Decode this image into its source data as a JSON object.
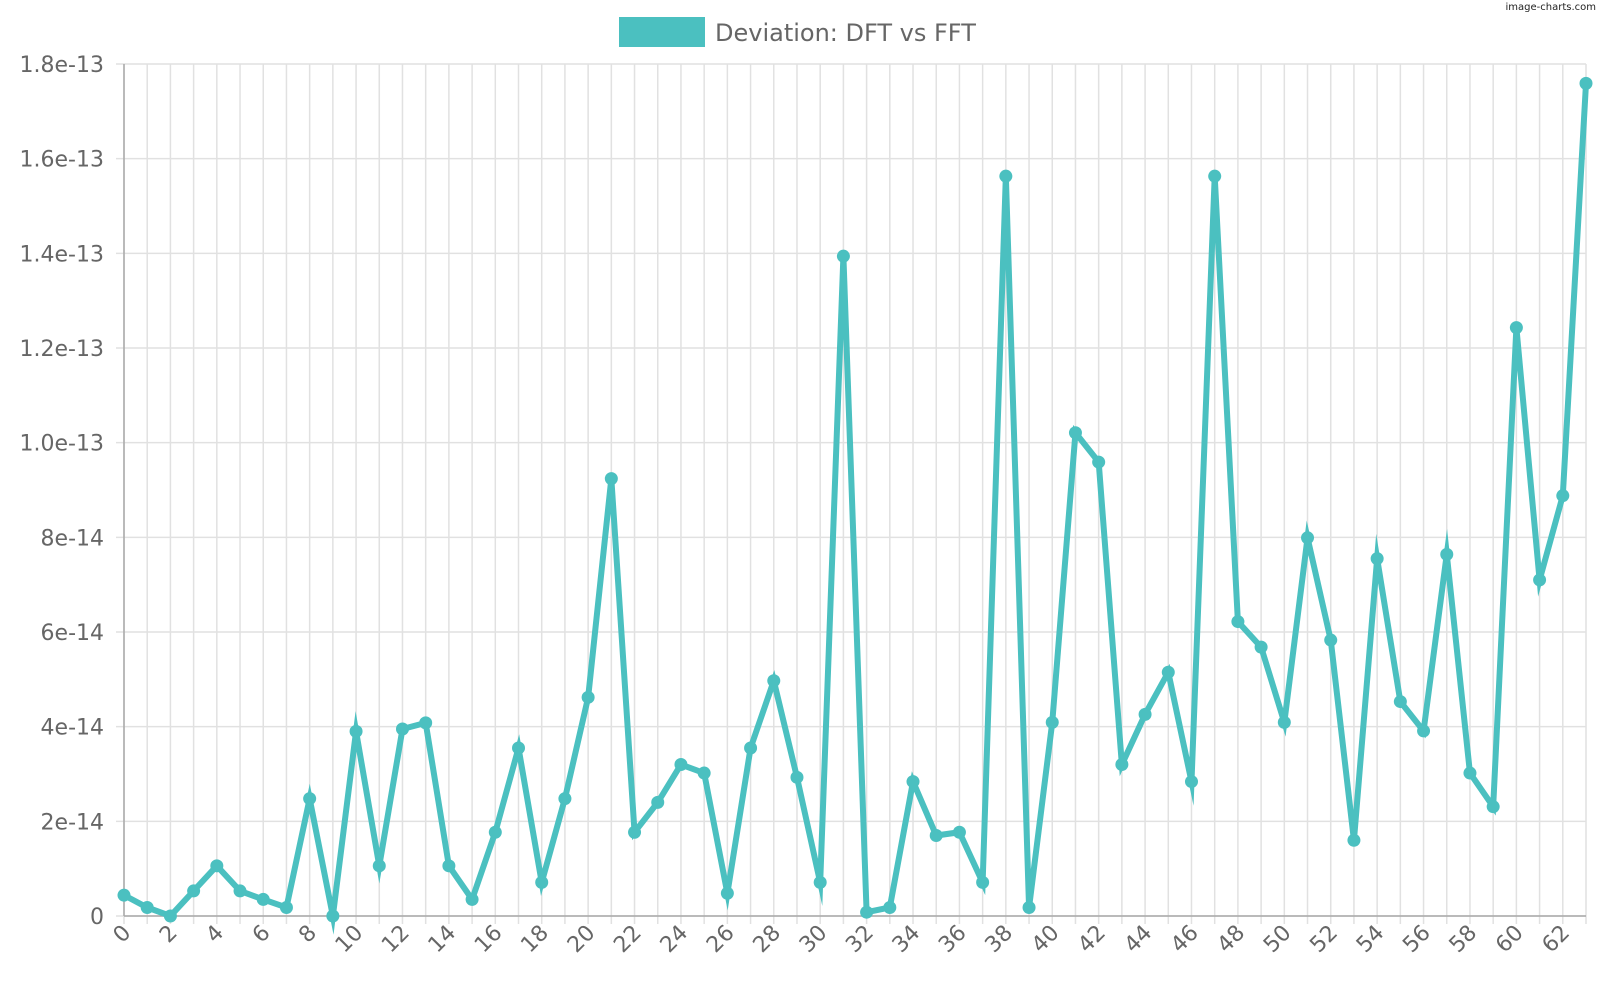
{
  "watermark": "image-charts.com",
  "colors": {
    "series": "#4bc0c0",
    "grid": "#e1e1e1",
    "axis": "#a8a8a8",
    "text": "#666666"
  },
  "chart_data": {
    "type": "line",
    "title": "",
    "xlabel": "",
    "ylabel": "",
    "grid": true,
    "legend": "top-center",
    "xlim": [
      0,
      63
    ],
    "ylim": [
      0,
      1.8e-13
    ],
    "x_ticks": [
      0,
      2,
      4,
      6,
      8,
      10,
      12,
      14,
      16,
      18,
      20,
      22,
      24,
      26,
      28,
      30,
      32,
      34,
      36,
      38,
      40,
      42,
      44,
      46,
      48,
      50,
      52,
      54,
      56,
      58,
      60,
      62
    ],
    "x_tick_labels": [
      "0",
      "2",
      "4",
      "6",
      "8",
      "10",
      "12",
      "14",
      "16",
      "18",
      "20",
      "22",
      "24",
      "26",
      "28",
      "30",
      "32",
      "34",
      "36",
      "38",
      "40",
      "42",
      "44",
      "46",
      "48",
      "50",
      "52",
      "54",
      "56",
      "58",
      "60",
      "62"
    ],
    "y_ticks": [
      0,
      2e-14,
      4e-14,
      6e-14,
      8e-14,
      1e-13,
      1.2e-13,
      1.4e-13,
      1.6e-13,
      1.8e-13
    ],
    "y_tick_labels": [
      "0",
      "2e-14",
      "4e-14",
      "6e-14",
      "8e-14",
      "1.0e-13",
      "1.2e-13",
      "1.4e-13",
      "1.6e-13",
      "1.8e-13"
    ],
    "series": [
      {
        "name": "Deviation: DFT vs FFT",
        "color": "#4bc0c0",
        "x": [
          0,
          1,
          2,
          3,
          4,
          5,
          6,
          7,
          8,
          9,
          10,
          11,
          12,
          13,
          14,
          15,
          16,
          17,
          18,
          19,
          20,
          21,
          22,
          23,
          24,
          25,
          26,
          27,
          28,
          29,
          30,
          31,
          32,
          33,
          34,
          35,
          36,
          37,
          38,
          39,
          40,
          41,
          42,
          43,
          44,
          45,
          46,
          47,
          48,
          49,
          50,
          51,
          52,
          53,
          54,
          55,
          56,
          57,
          58,
          59,
          60,
          61,
          62,
          63
        ],
        "values": [
          4.4e-15,
          1.8e-15,
          0,
          5.3e-15,
          1.06e-14,
          5.3e-15,
          3.5e-15,
          1.8e-15,
          2.48e-14,
          0,
          3.9e-14,
          1.06e-14,
          3.95e-14,
          4.08e-14,
          1.06e-14,
          3.5e-15,
          1.77e-14,
          3.55e-14,
          7.1e-15,
          2.48e-14,
          4.62e-14,
          9.24e-14,
          1.77e-14,
          2.4e-14,
          3.2e-14,
          3.02e-14,
          4.8e-15,
          3.55e-14,
          4.97e-14,
          2.93e-14,
          7.1e-15,
          1.394e-13,
          8e-16,
          1.8e-15,
          2.84e-14,
          1.7e-14,
          1.77e-14,
          7.1e-15,
          1.563e-13,
          1.8e-15,
          4.09e-14,
          1.021e-13,
          9.59e-14,
          3.2e-14,
          4.26e-14,
          5.15e-14,
          2.84e-14,
          1.563e-13,
          6.22e-14,
          5.68e-14,
          4.09e-14,
          7.99e-14,
          5.83e-14,
          1.6e-14,
          7.55e-14,
          4.53e-14,
          3.91e-14,
          7.64e-14,
          3.02e-14,
          2.31e-14,
          1.243e-13,
          7.1e-14,
          8.88e-14,
          1.759e-13
        ]
      }
    ]
  }
}
